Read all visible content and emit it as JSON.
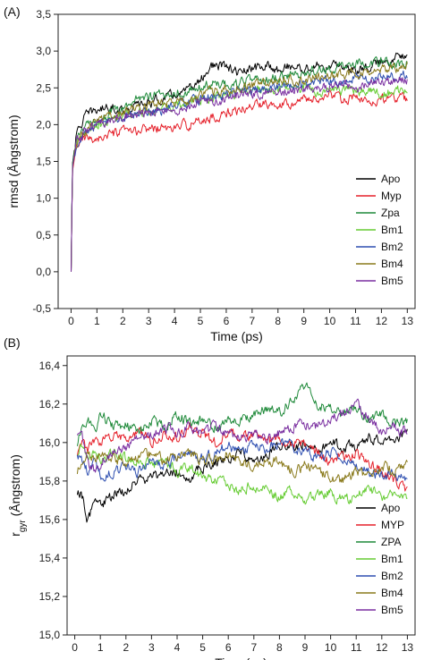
{
  "chart_data": [
    {
      "type": "line",
      "panel_label": "(A)",
      "xlabel": "Time (ps)",
      "ylabel": "rmsd (Ångstrom)",
      "xlim": [
        -0.5,
        13.3
      ],
      "ylim": [
        -0.5,
        3.5
      ],
      "x_ticks": [
        0,
        1,
        2,
        3,
        4,
        5,
        6,
        7,
        8,
        9,
        10,
        11,
        12,
        13
      ],
      "y_ticks": [
        -0.5,
        0.0,
        0.5,
        1.0,
        1.5,
        2.0,
        2.5,
        3.0,
        3.5
      ],
      "y_tick_labels": [
        "-0,5",
        "0,0",
        "0,5",
        "1,0",
        "1,5",
        "2,0",
        "2,5",
        "3,0",
        "3,5"
      ],
      "grid": false,
      "legend_position": "right",
      "series": [
        {
          "name": "Apo",
          "color": "#000000",
          "x": [
            0,
            0.05,
            0.2,
            0.5,
            1,
            1.5,
            2,
            2.5,
            3,
            3.5,
            4,
            4.5,
            5,
            5.3,
            5.5,
            6,
            6.5,
            7,
            7.5,
            8,
            8.5,
            9,
            9.5,
            10,
            10.5,
            11,
            11.5,
            12,
            12.5,
            13
          ],
          "values": [
            0,
            1.45,
            1.85,
            2.1,
            2.2,
            2.25,
            2.2,
            2.25,
            2.3,
            2.35,
            2.4,
            2.45,
            2.6,
            2.75,
            2.8,
            2.78,
            2.7,
            2.75,
            2.8,
            2.75,
            2.8,
            2.75,
            2.8,
            2.78,
            2.8,
            2.75,
            2.8,
            2.85,
            2.9,
            3.0
          ]
        },
        {
          "name": "Myp",
          "color": "#e5202a",
          "x": [
            0,
            0.05,
            0.2,
            0.5,
            1,
            1.5,
            2,
            2.5,
            3,
            3.5,
            4,
            4.5,
            5,
            5.5,
            6,
            6.5,
            7,
            7.5,
            8,
            8.5,
            9,
            9.5,
            10,
            10.5,
            11,
            11.5,
            12,
            12.5,
            13
          ],
          "values": [
            0,
            1.35,
            1.7,
            1.8,
            1.82,
            1.85,
            1.9,
            1.9,
            1.95,
            1.95,
            1.95,
            2.0,
            2.05,
            2.1,
            2.15,
            2.2,
            2.25,
            2.3,
            2.3,
            2.3,
            2.35,
            2.35,
            2.4,
            2.35,
            2.35,
            2.3,
            2.35,
            2.35,
            2.35
          ]
        },
        {
          "name": "Zpa",
          "color": "#1f8a3a",
          "x": [
            0,
            0.05,
            0.2,
            0.5,
            1,
            1.5,
            2,
            2.5,
            3,
            3.5,
            4,
            4.5,
            5,
            5.5,
            6,
            6.5,
            7,
            7.5,
            8,
            8.5,
            9,
            9.5,
            10,
            10.5,
            11,
            11.5,
            12,
            12.5,
            13
          ],
          "values": [
            0,
            1.45,
            1.8,
            1.95,
            2.05,
            2.15,
            2.2,
            2.35,
            2.4,
            2.4,
            2.45,
            2.45,
            2.5,
            2.55,
            2.55,
            2.55,
            2.6,
            2.6,
            2.65,
            2.65,
            2.7,
            2.75,
            2.75,
            2.8,
            2.85,
            2.85,
            2.85,
            2.8,
            2.85
          ]
        },
        {
          "name": "Bm1",
          "color": "#66cc33",
          "x": [
            0,
            0.05,
            0.2,
            0.5,
            1,
            1.5,
            2,
            2.5,
            3,
            3.5,
            4,
            4.5,
            5,
            5.5,
            6,
            6.5,
            7,
            7.5,
            8,
            8.5,
            9,
            9.5,
            10,
            10.5,
            11,
            11.5,
            12,
            12.5,
            13
          ],
          "values": [
            0,
            1.4,
            1.75,
            1.9,
            2.0,
            2.05,
            2.1,
            2.15,
            2.2,
            2.25,
            2.25,
            2.3,
            2.35,
            2.35,
            2.4,
            2.45,
            2.45,
            2.45,
            2.5,
            2.5,
            2.5,
            2.45,
            2.5,
            2.45,
            2.45,
            2.45,
            2.4,
            2.45,
            2.5
          ]
        },
        {
          "name": "Bm2",
          "color": "#2e4fb0",
          "x": [
            0,
            0.05,
            0.2,
            0.5,
            1,
            1.5,
            2,
            2.5,
            3,
            3.5,
            4,
            4.5,
            5,
            5.5,
            6,
            6.5,
            7,
            7.5,
            8,
            8.5,
            9,
            9.5,
            10,
            10.5,
            11,
            11.5,
            12,
            12.5,
            13
          ],
          "values": [
            0,
            1.4,
            1.75,
            1.9,
            2.0,
            2.05,
            2.1,
            2.15,
            2.2,
            2.2,
            2.25,
            2.3,
            2.35,
            2.4,
            2.4,
            2.45,
            2.45,
            2.5,
            2.5,
            2.5,
            2.55,
            2.55,
            2.6,
            2.6,
            2.65,
            2.6,
            2.65,
            2.65,
            2.7
          ]
        },
        {
          "name": "Bm4",
          "color": "#8a7a1c",
          "x": [
            0,
            0.05,
            0.2,
            0.5,
            1,
            1.5,
            2,
            2.5,
            3,
            3.5,
            4,
            4.5,
            5,
            5.5,
            6,
            6.5,
            7,
            7.5,
            8,
            8.5,
            9,
            9.5,
            10,
            10.5,
            11,
            11.5,
            12,
            12.5,
            13
          ],
          "values": [
            0,
            1.4,
            1.75,
            1.9,
            2.05,
            2.1,
            2.15,
            2.2,
            2.25,
            2.3,
            2.3,
            2.35,
            2.4,
            2.45,
            2.5,
            2.5,
            2.55,
            2.55,
            2.6,
            2.6,
            2.6,
            2.65,
            2.65,
            2.7,
            2.7,
            2.7,
            2.75,
            2.75,
            2.8
          ]
        },
        {
          "name": "Bm5",
          "color": "#7a2fa0",
          "x": [
            0,
            0.05,
            0.2,
            0.5,
            1,
            1.5,
            2,
            2.5,
            3,
            3.5,
            4,
            4.5,
            5,
            5.5,
            6,
            6.5,
            7,
            7.5,
            8,
            8.5,
            9,
            9.5,
            10,
            10.5,
            11,
            11.5,
            12,
            12.5,
            13
          ],
          "values": [
            0,
            1.4,
            1.75,
            1.9,
            2.0,
            2.05,
            2.1,
            2.15,
            2.15,
            2.2,
            2.2,
            2.25,
            2.3,
            2.3,
            2.35,
            2.4,
            2.4,
            2.45,
            2.45,
            2.45,
            2.5,
            2.5,
            2.5,
            2.55,
            2.5,
            2.55,
            2.55,
            2.6,
            2.6
          ]
        }
      ]
    },
    {
      "type": "line",
      "panel_label": "(B)",
      "xlabel": "Time (ns)",
      "ylabel": "r",
      "ylabel_sub": "gyr",
      "ylabel_suffix": " (Ångstrom)",
      "xlim": [
        -0.3,
        13.3
      ],
      "ylim": [
        15.0,
        16.45
      ],
      "x_ticks": [
        0,
        1,
        2,
        3,
        4,
        5,
        6,
        7,
        8,
        9,
        10,
        11,
        12,
        13
      ],
      "y_ticks": [
        15.0,
        15.2,
        15.4,
        15.6,
        15.8,
        16.0,
        16.2,
        16.4
      ],
      "y_tick_labels": [
        "15,0",
        "15,2",
        "15,4",
        "15,6",
        "15,8",
        "16,0",
        "16,2",
        "16,4"
      ],
      "grid": false,
      "legend_position": "right",
      "series": [
        {
          "name": "Apo",
          "color": "#000000",
          "x": [
            0.1,
            0.3,
            0.5,
            0.8,
            1,
            1.5,
            2,
            2.5,
            3,
            3.5,
            4,
            4.5,
            5,
            5.5,
            6,
            6.5,
            7,
            7.5,
            8,
            8.5,
            9,
            9.5,
            10,
            10.5,
            11,
            11.5,
            12,
            12.5,
            13
          ],
          "values": [
            15.75,
            15.72,
            15.6,
            15.7,
            15.68,
            15.72,
            15.75,
            15.8,
            15.82,
            15.84,
            15.85,
            15.82,
            15.87,
            15.9,
            15.92,
            15.95,
            15.9,
            15.95,
            15.98,
            15.97,
            16.0,
            15.95,
            16.0,
            15.97,
            15.98,
            16.02,
            16.0,
            16.03,
            16.05
          ]
        },
        {
          "name": "MYP",
          "color": "#e5202a",
          "x": [
            0.1,
            0.3,
            0.5,
            0.8,
            1,
            1.5,
            2,
            2.5,
            3,
            3.5,
            4,
            4.5,
            5,
            5.5,
            6,
            6.5,
            7,
            7.5,
            8,
            8.5,
            9,
            9.5,
            10,
            10.5,
            11,
            11.5,
            12,
            12.5,
            13
          ],
          "values": [
            15.95,
            16.0,
            15.95,
            16.02,
            16.0,
            16.03,
            16.02,
            16.05,
            16.0,
            16.05,
            16.03,
            16.08,
            16.05,
            16.0,
            16.05,
            16.02,
            16.05,
            16.0,
            16.02,
            16.0,
            15.98,
            15.95,
            15.9,
            15.92,
            15.95,
            15.88,
            15.85,
            15.8,
            15.75
          ]
        },
        {
          "name": "ZPA",
          "color": "#1f8a3a",
          "x": [
            0.1,
            0.3,
            0.5,
            0.8,
            1,
            1.5,
            2,
            2.5,
            3,
            3.5,
            4,
            4.5,
            5,
            5.5,
            6,
            6.5,
            7,
            7.5,
            8,
            8.5,
            9,
            9.5,
            10,
            10.5,
            11,
            11.5,
            12,
            12.5,
            13
          ],
          "values": [
            16.0,
            16.08,
            16.12,
            16.05,
            16.15,
            16.08,
            16.1,
            16.05,
            16.12,
            16.08,
            16.15,
            16.1,
            16.12,
            16.08,
            16.1,
            16.12,
            16.15,
            16.18,
            16.15,
            16.22,
            16.3,
            16.2,
            16.18,
            16.15,
            16.18,
            16.12,
            16.15,
            16.1,
            16.12
          ]
        },
        {
          "name": "Bm1",
          "color": "#66cc33",
          "x": [
            0.1,
            0.3,
            0.5,
            0.8,
            1,
            1.5,
            2,
            2.5,
            3,
            3.5,
            4,
            4.5,
            5,
            5.5,
            6,
            6.5,
            7,
            7.5,
            8,
            8.5,
            9,
            9.5,
            10,
            10.5,
            11,
            11.5,
            12,
            12.5,
            13
          ],
          "values": [
            15.95,
            15.98,
            15.92,
            15.95,
            15.9,
            15.95,
            15.92,
            15.9,
            15.88,
            15.9,
            15.85,
            15.88,
            15.82,
            15.8,
            15.78,
            15.75,
            15.78,
            15.75,
            15.72,
            15.75,
            15.7,
            15.72,
            15.74,
            15.7,
            15.72,
            15.75,
            15.72,
            15.74,
            15.7
          ]
        },
        {
          "name": "Bm2",
          "color": "#2e4fb0",
          "x": [
            0.1,
            0.3,
            0.5,
            0.8,
            1,
            1.5,
            2,
            2.5,
            3,
            3.5,
            4,
            4.5,
            5,
            5.5,
            6,
            6.5,
            7,
            7.5,
            8,
            8.5,
            9,
            9.5,
            10,
            10.5,
            11,
            11.5,
            12,
            12.5,
            13
          ],
          "values": [
            15.95,
            15.9,
            15.85,
            15.9,
            15.82,
            15.85,
            15.88,
            15.85,
            15.9,
            15.88,
            15.92,
            15.95,
            15.92,
            15.95,
            15.98,
            15.95,
            16.0,
            15.97,
            16.0,
            15.98,
            15.95,
            15.92,
            15.95,
            15.9,
            15.88,
            15.85,
            15.82,
            15.84,
            15.8
          ]
        },
        {
          "name": "Bm4",
          "color": "#8a7a1c",
          "x": [
            0.1,
            0.3,
            0.5,
            0.8,
            1,
            1.5,
            2,
            2.5,
            3,
            3.5,
            4,
            4.5,
            5,
            5.5,
            6,
            6.5,
            7,
            7.5,
            8,
            8.5,
            9,
            9.5,
            10,
            10.5,
            11,
            11.5,
            12,
            12.5,
            13
          ],
          "values": [
            15.85,
            15.92,
            15.95,
            15.9,
            15.95,
            15.92,
            15.9,
            15.93,
            15.95,
            15.9,
            15.92,
            15.95,
            15.9,
            15.92,
            15.95,
            15.9,
            15.88,
            15.92,
            15.9,
            15.85,
            15.88,
            15.85,
            15.82,
            15.8,
            15.85,
            15.82,
            15.88,
            15.85,
            15.88
          ]
        },
        {
          "name": "Bm5",
          "color": "#7a2fa0",
          "x": [
            0.1,
            0.3,
            0.5,
            0.8,
            1,
            1.5,
            2,
            2.5,
            3,
            3.5,
            4,
            4.5,
            5,
            5.5,
            6,
            6.5,
            7,
            7.5,
            8,
            8.5,
            9,
            9.5,
            10,
            10.5,
            11,
            11.5,
            12,
            12.5,
            13
          ],
          "values": [
            16.05,
            16.02,
            15.9,
            15.85,
            15.9,
            15.95,
            15.98,
            16.02,
            16.05,
            16.08,
            16.05,
            16.08,
            16.05,
            16.08,
            16.05,
            16.02,
            16.05,
            16.02,
            16.05,
            16.08,
            16.1,
            16.08,
            16.12,
            16.15,
            16.2,
            16.12,
            16.05,
            16.08,
            16.05
          ]
        }
      ]
    }
  ]
}
